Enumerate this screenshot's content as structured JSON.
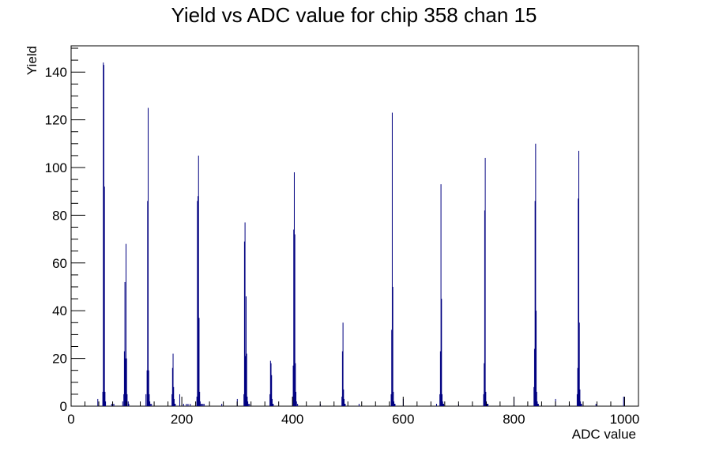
{
  "chart_data": {
    "type": "bar",
    "title": "Yield vs ADC value for chip 358 chan 15",
    "xlabel": "ADC value",
    "ylabel": "Yield",
    "xlim": [
      0,
      1025
    ],
    "ylim": [
      0,
      151
    ],
    "x_ticks": [
      "0",
      "200",
      "400",
      "600",
      "800",
      "1000"
    ],
    "y_ticks": [
      "0",
      "20",
      "40",
      "60",
      "80",
      "100",
      "120",
      "140"
    ],
    "bar_color": "#000080",
    "grid": false,
    "legend": "none",
    "series": [
      {
        "x": [
          48,
          57,
          58,
          59,
          60,
          61,
          62,
          73,
          75,
          77,
          93,
          95,
          96,
          97,
          98,
          99,
          100,
          101,
          103,
          104,
          135,
          137,
          138,
          139,
          140,
          141,
          142,
          143,
          145,
          182,
          183,
          184,
          185,
          186,
          187,
          188,
          196,
          203,
          208,
          211,
          215,
          227,
          228,
          229,
          230,
          231,
          232,
          233,
          234,
          236,
          238,
          240,
          272,
          300,
          312,
          313,
          314,
          315,
          316,
          317,
          318,
          319,
          320,
          322,
          359,
          360,
          361,
          362,
          363,
          364,
          365,
          400,
          401,
          402,
          403,
          404,
          405,
          406,
          407,
          409,
          450,
          489,
          490,
          491,
          492,
          493,
          494,
          495,
          520,
          578,
          579,
          580,
          581,
          582,
          583,
          584,
          585,
          600,
          660,
          666,
          667,
          668,
          669,
          670,
          671,
          672,
          673,
          700,
          745,
          746,
          747,
          748,
          749,
          750,
          751,
          752,
          753,
          800,
          836,
          837,
          838,
          839,
          840,
          841,
          842,
          843,
          844,
          875,
          900,
          914,
          915,
          916,
          917,
          918,
          919,
          920,
          921,
          922,
          948,
          998
        ],
        "values": [
          3,
          6,
          144,
          143,
          92,
          6,
          2,
          1,
          1,
          1,
          2,
          5,
          23,
          52,
          20,
          68,
          20,
          5,
          2,
          1,
          5,
          15,
          86,
          125,
          15,
          5,
          2,
          1,
          1,
          5,
          16,
          22,
          8,
          3,
          1,
          1,
          5,
          1,
          1,
          1,
          1,
          4,
          86,
          88,
          105,
          37,
          6,
          2,
          1,
          1,
          1,
          1,
          1,
          3,
          5,
          69,
          77,
          21,
          46,
          22,
          4,
          2,
          1,
          1,
          5,
          19,
          18,
          13,
          3,
          1,
          1,
          4,
          17,
          74,
          98,
          72,
          18,
          6,
          2,
          1,
          1,
          4,
          23,
          35,
          7,
          3,
          1,
          1,
          1,
          5,
          32,
          123,
          50,
          6,
          2,
          1,
          1,
          3,
          1,
          5,
          23,
          93,
          45,
          5,
          2,
          1,
          1,
          1,
          5,
          18,
          82,
          104,
          6,
          2,
          1,
          1,
          1,
          4,
          8,
          24,
          86,
          110,
          40,
          6,
          2,
          1,
          1,
          3,
          1,
          5,
          16,
          87,
          107,
          35,
          7,
          2,
          1,
          1,
          1,
          4
        ]
      }
    ]
  }
}
